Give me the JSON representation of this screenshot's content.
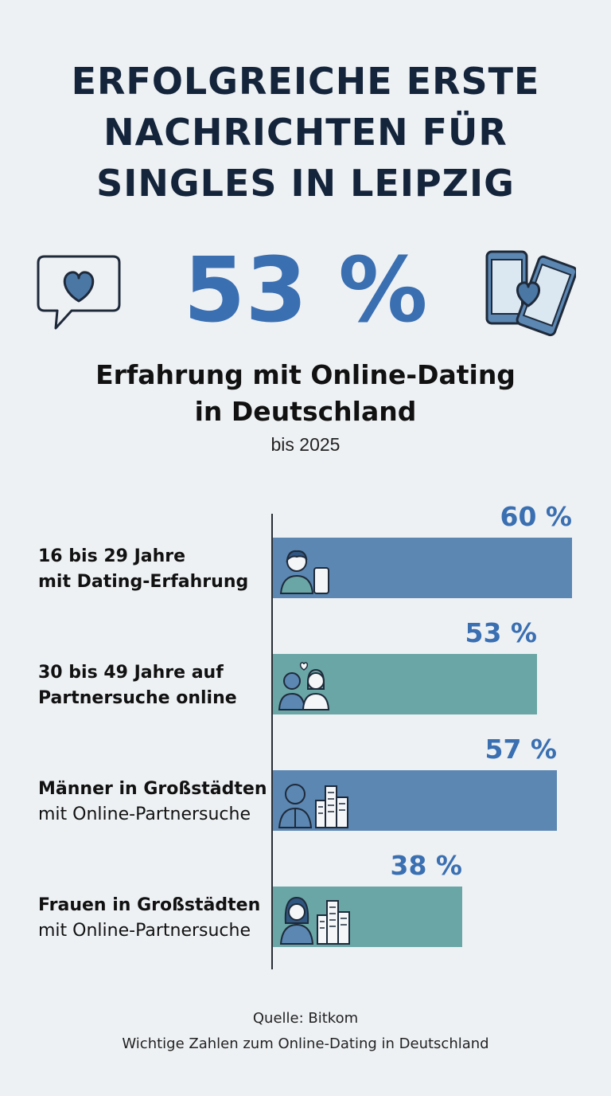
{
  "title_lines": [
    "ERFOLGREICHE ERSTE",
    "NACHRICHTEN FÜR",
    "SINGLES IN LEIPZIG"
  ],
  "headline_stat": "53 %",
  "subtitle_lines": [
    "Erfahrung mit Online-Dating",
    "in Deutschland"
  ],
  "subnote": "bis 2025",
  "icons": {
    "left": "chat-heart-icon",
    "right": "phones-heart-icon"
  },
  "colors": {
    "accent": "#3a6fb2",
    "bar_blue": "#5b87b2",
    "bar_teal": "#6aa6a6",
    "title": "#14243b"
  },
  "chart_data": {
    "type": "bar",
    "orientation": "horizontal",
    "categories": [
      [
        "16 bis 29 Jahre",
        "mit Dating-Erfahrung"
      ],
      [
        "30 bis 49 Jahre auf",
        "Partnersuche online"
      ],
      [
        "Männer in Großstädten",
        "mit Online-Partnersuche"
      ],
      [
        "Frauen in Großstädten",
        "mit Online-Partnersuche"
      ]
    ],
    "values": [
      60,
      53,
      57,
      38
    ],
    "value_labels": [
      "60 %",
      "53 %",
      "57 %",
      "38 %"
    ],
    "bar_colors": [
      "#5b87b2",
      "#6aa6a6",
      "#5b87b2",
      "#6aa6a6"
    ],
    "bar_icons": [
      "young-person-phone-icon",
      "couple-heart-icon",
      "man-city-icon",
      "woman-city-icon"
    ],
    "unit": "%",
    "xlim": [
      0,
      60
    ],
    "title": "",
    "xlabel": "",
    "ylabel": ""
  },
  "source": {
    "line1": "Quelle: Bitkom",
    "line2": "Wichtige Zahlen zum Online-Dating in Deutschland"
  }
}
